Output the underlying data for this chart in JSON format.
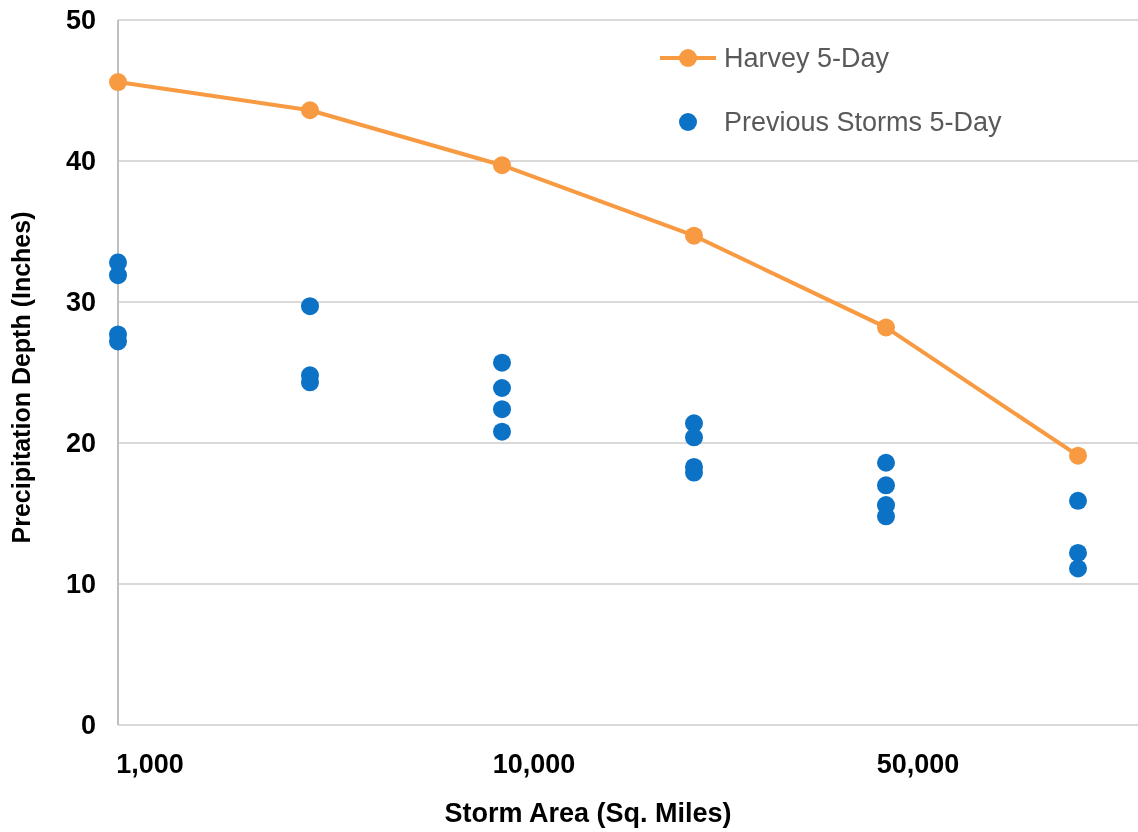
{
  "chart_data": {
    "type": "line",
    "xlabel": "Storm Area (Sq. Miles)",
    "ylabel": "Precipitation Depth (Inches)",
    "categories": [
      "1,000",
      null,
      "10,000",
      null,
      "50,000",
      null
    ],
    "ylim": [
      0,
      50
    ],
    "yticks": [
      0,
      10,
      20,
      30,
      40,
      50
    ],
    "grid": "y",
    "legend": "top right",
    "marker": "circle",
    "series": [
      {
        "name": "Harvey 5-Day",
        "color": "#f79a42",
        "values": [
          45.6,
          43.6,
          39.7,
          34.7,
          28.2,
          19.1
        ]
      },
      {
        "name": "Previous Storms 5-Day",
        "type": "scatter",
        "color": "#0b72c6",
        "values": [
          32.8,
          29.7,
          25.7,
          21.4,
          18.6,
          15.9
        ]
      },
      {
        "type": "scatter",
        "color": "#0b72c6",
        "values": [
          31.9,
          24.8,
          23.9,
          20.4,
          17.0,
          12.2
        ]
      },
      {
        "type": "scatter",
        "color": "#0b72c6",
        "values": [
          27.7,
          24.3,
          22.4,
          18.3,
          15.6,
          11.1
        ]
      },
      {
        "type": "scatter",
        "color": "#0b72c6",
        "values": [
          27.2,
          null,
          20.8,
          17.9,
          14.8,
          null
        ]
      }
    ]
  }
}
